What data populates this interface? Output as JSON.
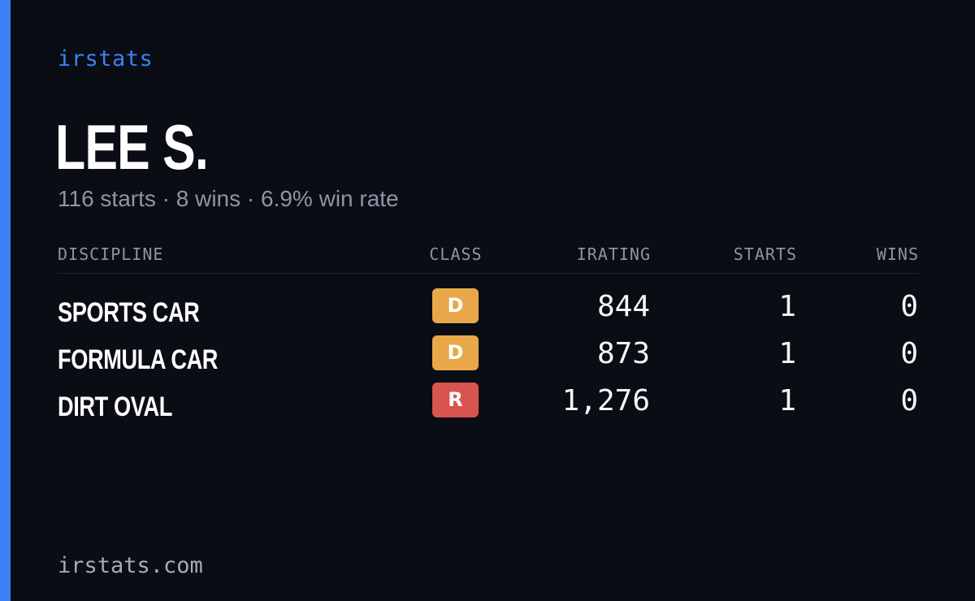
{
  "colors": {
    "accent": "#3b82f6",
    "background": "#0a0d14",
    "class_d": "#e8a84a",
    "class_r": "#d9534f"
  },
  "brand": "irstats",
  "driver": {
    "name": "LEE S.",
    "summary": "116 starts · 8 wins · 6.9% win rate"
  },
  "table": {
    "headers": {
      "discipline": "DISCIPLINE",
      "class": "CLASS",
      "irating": "IRATING",
      "starts": "STARTS",
      "wins": "WINS"
    },
    "rows": [
      {
        "discipline": "SPORTS CAR",
        "class": "D",
        "class_color": "#e8a84a",
        "irating": "844",
        "starts": "1",
        "wins": "0"
      },
      {
        "discipline": "FORMULA CAR",
        "class": "D",
        "class_color": "#e8a84a",
        "irating": "873",
        "starts": "1",
        "wins": "0"
      },
      {
        "discipline": "DIRT OVAL",
        "class": "R",
        "class_color": "#d9534f",
        "irating": "1,276",
        "starts": "1",
        "wins": "0"
      }
    ]
  },
  "footer": "irstats.com"
}
